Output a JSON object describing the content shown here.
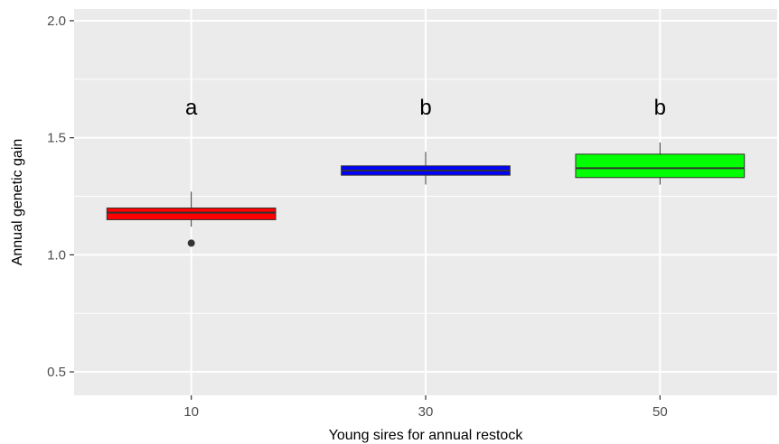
{
  "chart_data": {
    "type": "boxplot",
    "title": "",
    "xlabel": "Young sires for annual restock",
    "ylabel": "Annual genetic gain",
    "ylim": [
      0.4,
      2.05
    ],
    "yticks": [
      0.5,
      1.0,
      1.5,
      2.0
    ],
    "ytick_labels": [
      "0.5",
      "1.0",
      "1.5",
      "2.0"
    ],
    "categories": [
      "10",
      "30",
      "50"
    ],
    "grid": true,
    "legend": "none",
    "background_color": "#ebebeb",
    "grid_color": "#ffffff",
    "boxes": [
      {
        "category": "10",
        "min": 1.12,
        "q1": 1.15,
        "median": 1.18,
        "q3": 1.2,
        "max": 1.27,
        "outliers": [
          1.05
        ],
        "color": "#ff0000",
        "label": "a"
      },
      {
        "category": "30",
        "min": 1.3,
        "q1": 1.34,
        "median": 1.36,
        "q3": 1.38,
        "max": 1.44,
        "outliers": [],
        "color": "#0000ff",
        "label": "b"
      },
      {
        "category": "50",
        "min": 1.3,
        "q1": 1.33,
        "median": 1.37,
        "q3": 1.43,
        "max": 1.48,
        "outliers": [],
        "color": "#00ff00",
        "label": "b"
      }
    ],
    "annotation_y": 1.63
  }
}
